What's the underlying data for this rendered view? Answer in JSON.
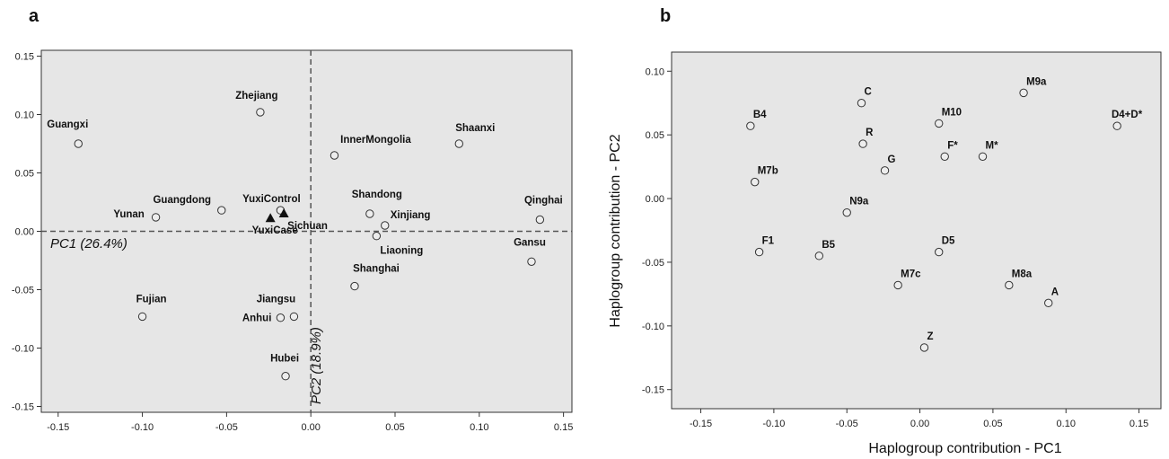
{
  "chart_data": [
    {
      "type": "scatter",
      "panel_label": "a",
      "xlim": [
        -0.16,
        0.155
      ],
      "ylim": [
        -0.155,
        0.155
      ],
      "xticks": [
        "-0.15",
        "-0.10",
        "-0.05",
        "0.00",
        "0.05",
        "0.10",
        "0.15"
      ],
      "yticks": [
        "0.15",
        "0.10",
        "0.05",
        "0.00",
        "-0.05",
        "-0.10",
        "-0.15"
      ],
      "pc1_label": "PC1 (26.4%)",
      "pc2_label": "PC2 (18.9%)",
      "points": [
        {
          "name": "Guangxi",
          "x": -0.138,
          "y": 0.075,
          "marker": "circle"
        },
        {
          "name": "Zhejiang",
          "x": -0.03,
          "y": 0.102,
          "marker": "circle"
        },
        {
          "name": "InnerMongolia",
          "x": 0.014,
          "y": 0.065,
          "marker": "circle"
        },
        {
          "name": "Shaanxi",
          "x": 0.088,
          "y": 0.075,
          "marker": "circle"
        },
        {
          "name": "Guangdong",
          "x": -0.053,
          "y": 0.018,
          "marker": "circle"
        },
        {
          "name": "YuxiControl",
          "x": -0.018,
          "y": 0.018,
          "marker": "circle"
        },
        {
          "name": "Yunan",
          "x": -0.092,
          "y": 0.012,
          "marker": "circle"
        },
        {
          "name": "Sichuan",
          "x": -0.016,
          "y": 0.015,
          "marker": "triangle"
        },
        {
          "name": "YuxiCase",
          "x": -0.024,
          "y": 0.011,
          "marker": "triangle"
        },
        {
          "name": "Shandong",
          "x": 0.035,
          "y": 0.015,
          "marker": "circle"
        },
        {
          "name": "Xinjiang",
          "x": 0.044,
          "y": 0.005,
          "marker": "circle"
        },
        {
          "name": "Qinghai",
          "x": 0.136,
          "y": 0.01,
          "marker": "circle"
        },
        {
          "name": "Liaoning",
          "x": 0.039,
          "y": -0.004,
          "marker": "circle"
        },
        {
          "name": "Gansu",
          "x": 0.131,
          "y": -0.026,
          "marker": "circle"
        },
        {
          "name": "Shanghai",
          "x": 0.026,
          "y": -0.047,
          "marker": "circle"
        },
        {
          "name": "Fujian",
          "x": -0.1,
          "y": -0.073,
          "marker": "circle"
        },
        {
          "name": "Jiangsu",
          "x": -0.01,
          "y": -0.073,
          "marker": "circle"
        },
        {
          "name": "Anhui",
          "x": -0.018,
          "y": -0.074,
          "marker": "circle"
        },
        {
          "name": "Hubei",
          "x": -0.015,
          "y": -0.124,
          "marker": "circle"
        }
      ]
    },
    {
      "type": "scatter",
      "panel_label": "b",
      "xlim": [
        -0.17,
        0.165
      ],
      "ylim": [
        -0.165,
        0.115
      ],
      "xticks": [
        "-0.15",
        "-0.10",
        "-0.05",
        "0.00",
        "0.05",
        "0.10",
        "0.15"
      ],
      "yticks": [
        "0.10",
        "0.05",
        "0.00",
        "-0.05",
        "-0.10",
        "-0.15"
      ],
      "xlabel": "Haplogroup contribution - PC1",
      "ylabel": "Haplogroup contribution - PC2",
      "points": [
        {
          "name": "B4",
          "x": -0.116,
          "y": 0.057
        },
        {
          "name": "C",
          "x": -0.04,
          "y": 0.075
        },
        {
          "name": "M10",
          "x": 0.013,
          "y": 0.059
        },
        {
          "name": "M9a",
          "x": 0.071,
          "y": 0.083
        },
        {
          "name": "D4+D*",
          "x": 0.135,
          "y": 0.057
        },
        {
          "name": "R",
          "x": -0.039,
          "y": 0.043
        },
        {
          "name": "F*",
          "x": 0.017,
          "y": 0.033
        },
        {
          "name": "M*",
          "x": 0.043,
          "y": 0.033
        },
        {
          "name": "G",
          "x": -0.024,
          "y": 0.022
        },
        {
          "name": "M7b",
          "x": -0.113,
          "y": 0.013
        },
        {
          "name": "N9a",
          "x": -0.05,
          "y": -0.011
        },
        {
          "name": "F1",
          "x": -0.11,
          "y": -0.042
        },
        {
          "name": "B5",
          "x": -0.069,
          "y": -0.045
        },
        {
          "name": "D5",
          "x": 0.013,
          "y": -0.042
        },
        {
          "name": "M7c",
          "x": -0.015,
          "y": -0.068
        },
        {
          "name": "M8a",
          "x": 0.061,
          "y": -0.068
        },
        {
          "name": "A",
          "x": 0.088,
          "y": -0.082
        },
        {
          "name": "Z",
          "x": 0.003,
          "y": -0.117
        }
      ]
    }
  ]
}
